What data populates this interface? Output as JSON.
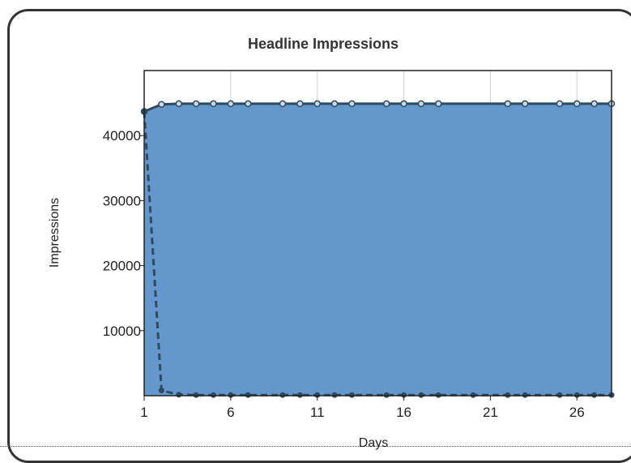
{
  "chart_data": {
    "type": "area",
    "title": "Headline Impressions",
    "xlabel": "Days",
    "ylabel": "Impressions",
    "xlim": [
      1,
      28
    ],
    "ylim": [
      0,
      50000
    ],
    "x_ticks": [
      1,
      6,
      11,
      16,
      21,
      26
    ],
    "y_ticks": [
      10000,
      20000,
      30000,
      40000
    ],
    "grid": true,
    "legend": "none",
    "series": [
      {
        "style": "filled-area-solid-line",
        "color": "#6497cb",
        "line_color": "#2f4a5e",
        "x": [
          1,
          2,
          3,
          4,
          5,
          6,
          7,
          9,
          10,
          11,
          12,
          13,
          15,
          16,
          17,
          18,
          22,
          23,
          25,
          26,
          27,
          28
        ],
        "values": [
          43700,
          44800,
          44900,
          44900,
          44900,
          44900,
          44900,
          44900,
          44900,
          44900,
          44900,
          44900,
          44900,
          44900,
          44900,
          44900,
          44900,
          44900,
          44900,
          44900,
          44900,
          44900
        ]
      },
      {
        "style": "dashed-line",
        "color": "#2f4a5e",
        "x": [
          1,
          2,
          3,
          4,
          5,
          6,
          7,
          9,
          10,
          11,
          12,
          13,
          15,
          16,
          17,
          18,
          20,
          22,
          23,
          25,
          26,
          27,
          28
        ],
        "values": [
          43700,
          800,
          150,
          100,
          100,
          100,
          100,
          100,
          100,
          100,
          100,
          100,
          100,
          100,
          100,
          100,
          100,
          100,
          100,
          100,
          100,
          100,
          100
        ]
      }
    ]
  }
}
